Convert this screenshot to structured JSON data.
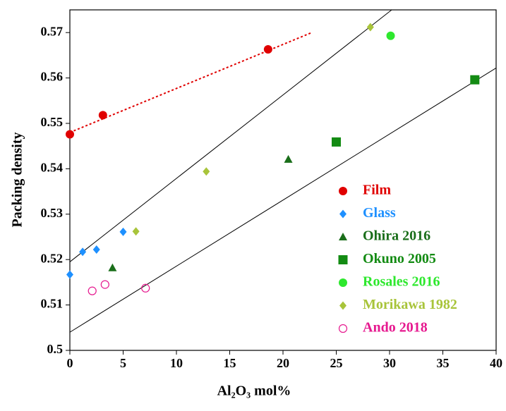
{
  "chart_data": {
    "type": "scatter",
    "x_label": "Al₂O₃ mol%",
    "y_label": "Packing density",
    "xlim": [
      0,
      40
    ],
    "xticks": [
      0,
      5,
      10,
      15,
      20,
      25,
      30,
      35,
      40
    ],
    "ylim": [
      0.5,
      0.575
    ],
    "yticks": [
      0.5,
      0.51,
      0.52,
      0.53,
      0.54,
      0.55,
      0.56,
      0.57
    ],
    "legend": "right",
    "series": [
      {
        "name": "Film",
        "color": "#e00000",
        "marker": "circle",
        "x": [
          0,
          3.1,
          18.6
        ],
        "values": [
          0.5476,
          0.5518,
          0.5663
        ]
      },
      {
        "name": "Glass",
        "color": "#1e90ff",
        "marker": "diamond",
        "x": [
          0,
          1.2,
          2.5,
          5
        ],
        "values": [
          0.5167,
          0.5217,
          0.5222,
          0.5261
        ]
      },
      {
        "name": "Ohira 2016",
        "color": "#1a6e1a",
        "marker": "triangle",
        "x": [
          4,
          20.5
        ],
        "values": [
          0.5182,
          0.5421
        ]
      },
      {
        "name": "Okuno 2005",
        "color": "#138b13",
        "marker": "square",
        "x": [
          25,
          38
        ],
        "values": [
          0.5459,
          0.5596
        ]
      },
      {
        "name": "Rosales 2016",
        "color": "#2ee82e",
        "marker": "circle",
        "x": [
          30.1
        ],
        "values": [
          0.5693
        ]
      },
      {
        "name": "Morikawa 1982",
        "color": "#a8c43a",
        "marker": "diamond",
        "x": [
          6.2,
          12.8,
          28.2
        ],
        "values": [
          0.5262,
          0.5394,
          0.5712
        ]
      },
      {
        "name": "Ando 2018",
        "color": "#e6198f",
        "marker": "circle-open",
        "x": [
          2.1,
          3.3,
          7.1
        ],
        "values": [
          0.5131,
          0.5145,
          0.5137
        ]
      }
    ],
    "lines": [
      {
        "color": "#e00000",
        "style": "dotted",
        "x": [
          0,
          22.7
        ],
        "values": [
          0.548,
          0.57
        ]
      },
      {
        "color": "#000000",
        "style": "solid",
        "x": [
          0,
          30.2
        ],
        "values": [
          0.5195,
          0.575
        ]
      },
      {
        "color": "#000000",
        "style": "solid",
        "x": [
          0,
          40
        ],
        "values": [
          0.504,
          0.5622
        ]
      }
    ]
  }
}
